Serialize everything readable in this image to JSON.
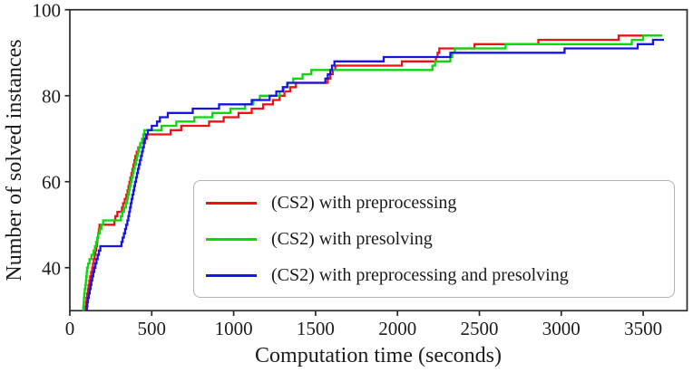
{
  "chart_data": {
    "type": "line",
    "line_style": "step-after",
    "title": "",
    "xlabel": "Computation time (seconds)",
    "ylabel": "Number of solved instances",
    "xlim": [
      0,
      3765
    ],
    "ylim": [
      30,
      100
    ],
    "xticks": [
      0,
      500,
      1000,
      1500,
      2000,
      2500,
      3000,
      3500
    ],
    "yticks": [
      40,
      60,
      80,
      100
    ],
    "grid": false,
    "legend_position": "lower-right-inside",
    "series": [
      {
        "name": "(CS2) with preprocessing",
        "color": "#ee1212",
        "points": [
          [
            93,
            30
          ],
          [
            96,
            31
          ],
          [
            99,
            32
          ],
          [
            102,
            33
          ],
          [
            106,
            34
          ],
          [
            110,
            35
          ],
          [
            114,
            36
          ],
          [
            119,
            37
          ],
          [
            124,
            38
          ],
          [
            130,
            39
          ],
          [
            136,
            40
          ],
          [
            141,
            41
          ],
          [
            146,
            42
          ],
          [
            151,
            43
          ],
          [
            156,
            44
          ],
          [
            161,
            45
          ],
          [
            165,
            46
          ],
          [
            169,
            47
          ],
          [
            173,
            48
          ],
          [
            177,
            49
          ],
          [
            181,
            50
          ],
          [
            272,
            51
          ],
          [
            278,
            52
          ],
          [
            290,
            53
          ],
          [
            318,
            54
          ],
          [
            325,
            55
          ],
          [
            335,
            56
          ],
          [
            345,
            57
          ],
          [
            352,
            58
          ],
          [
            358,
            59
          ],
          [
            364,
            60
          ],
          [
            370,
            61
          ],
          [
            376,
            62
          ],
          [
            382,
            63
          ],
          [
            388,
            64
          ],
          [
            394,
            65
          ],
          [
            400,
            66
          ],
          [
            408,
            67
          ],
          [
            418,
            68
          ],
          [
            430,
            69
          ],
          [
            448,
            70
          ],
          [
            470,
            71
          ],
          [
            615,
            72
          ],
          [
            680,
            73
          ],
          [
            850,
            74
          ],
          [
            939,
            75
          ],
          [
            1030,
            76
          ],
          [
            1110,
            77
          ],
          [
            1180,
            78
          ],
          [
            1240,
            79
          ],
          [
            1281,
            80
          ],
          [
            1310,
            81
          ],
          [
            1345,
            82
          ],
          [
            1380,
            83
          ],
          [
            1575,
            84
          ],
          [
            1590,
            85
          ],
          [
            1605,
            86
          ],
          [
            1620,
            87
          ],
          [
            2027,
            88
          ],
          [
            2235,
            89
          ],
          [
            2245,
            90
          ],
          [
            2255,
            91
          ],
          [
            2470,
            92
          ],
          [
            2860,
            93
          ],
          [
            3350,
            94
          ],
          [
            3600,
            94
          ]
        ]
      },
      {
        "name": "(CS2) with presolving",
        "color": "#0bd80b",
        "points": [
          [
            78,
            30
          ],
          [
            82,
            31
          ],
          [
            84,
            32
          ],
          [
            86,
            33
          ],
          [
            88,
            34
          ],
          [
            91,
            35
          ],
          [
            94,
            36
          ],
          [
            98,
            37
          ],
          [
            101,
            38
          ],
          [
            103,
            39
          ],
          [
            105,
            40
          ],
          [
            112,
            41
          ],
          [
            120,
            42
          ],
          [
            132,
            43
          ],
          [
            145,
            44
          ],
          [
            153,
            45
          ],
          [
            160,
            46
          ],
          [
            167,
            47
          ],
          [
            174,
            48
          ],
          [
            182,
            49
          ],
          [
            192,
            50
          ],
          [
            203,
            51
          ],
          [
            312,
            52
          ],
          [
            320,
            53
          ],
          [
            331,
            54
          ],
          [
            342,
            55
          ],
          [
            350,
            56
          ],
          [
            355,
            57
          ],
          [
            360,
            58
          ],
          [
            366,
            59
          ],
          [
            372,
            60
          ],
          [
            378,
            61
          ],
          [
            384,
            62
          ],
          [
            390,
            63
          ],
          [
            396,
            64
          ],
          [
            403,
            65
          ],
          [
            410,
            66
          ],
          [
            416,
            67
          ],
          [
            423,
            68
          ],
          [
            432,
            69
          ],
          [
            441,
            70
          ],
          [
            448,
            71
          ],
          [
            455,
            72
          ],
          [
            560,
            73
          ],
          [
            650,
            74
          ],
          [
            760,
            75
          ],
          [
            870,
            76
          ],
          [
            980,
            77
          ],
          [
            1070,
            78
          ],
          [
            1120,
            79
          ],
          [
            1160,
            80
          ],
          [
            1281,
            81
          ],
          [
            1305,
            82
          ],
          [
            1330,
            83
          ],
          [
            1364,
            84
          ],
          [
            1420,
            85
          ],
          [
            1474,
            86
          ],
          [
            2213,
            87
          ],
          [
            2230,
            88
          ],
          [
            2323,
            89
          ],
          [
            2335,
            90
          ],
          [
            2350,
            91
          ],
          [
            2660,
            92
          ],
          [
            3430,
            93
          ],
          [
            3500,
            94
          ],
          [
            3617,
            94
          ]
        ]
      },
      {
        "name": "(CS2) with preprocessing and presolving",
        "color": "#1515e6",
        "points": [
          [
            100,
            30
          ],
          [
            104,
            31
          ],
          [
            107,
            32
          ],
          [
            111,
            33
          ],
          [
            116,
            34
          ],
          [
            121,
            35
          ],
          [
            126,
            36
          ],
          [
            131,
            37
          ],
          [
            137,
            38
          ],
          [
            143,
            39
          ],
          [
            149,
            40
          ],
          [
            156,
            41
          ],
          [
            163,
            42
          ],
          [
            170,
            43
          ],
          [
            178,
            44
          ],
          [
            186,
            45
          ],
          [
            315,
            46
          ],
          [
            322,
            47
          ],
          [
            330,
            48
          ],
          [
            337,
            49
          ],
          [
            344,
            50
          ],
          [
            351,
            51
          ],
          [
            357,
            52
          ],
          [
            362,
            53
          ],
          [
            367,
            54
          ],
          [
            372,
            55
          ],
          [
            377,
            56
          ],
          [
            382,
            57
          ],
          [
            388,
            58
          ],
          [
            393,
            59
          ],
          [
            398,
            60
          ],
          [
            404,
            61
          ],
          [
            410,
            62
          ],
          [
            416,
            63
          ],
          [
            422,
            64
          ],
          [
            428,
            65
          ],
          [
            434,
            66
          ],
          [
            440,
            67
          ],
          [
            446,
            68
          ],
          [
            452,
            69
          ],
          [
            458,
            70
          ],
          [
            464,
            71
          ],
          [
            476,
            72
          ],
          [
            500,
            73
          ],
          [
            532,
            74
          ],
          [
            550,
            75
          ],
          [
            598,
            76
          ],
          [
            750,
            77
          ],
          [
            911,
            78
          ],
          [
            1110,
            79
          ],
          [
            1220,
            80
          ],
          [
            1260,
            81
          ],
          [
            1300,
            82
          ],
          [
            1327,
            83
          ],
          [
            1560,
            84
          ],
          [
            1575,
            85
          ],
          [
            1590,
            86
          ],
          [
            1600,
            87
          ],
          [
            1615,
            88
          ],
          [
            1916,
            89
          ],
          [
            2323,
            90
          ],
          [
            3020,
            91
          ],
          [
            3466,
            92
          ],
          [
            3560,
            93
          ],
          [
            3627,
            93
          ]
        ]
      }
    ]
  }
}
